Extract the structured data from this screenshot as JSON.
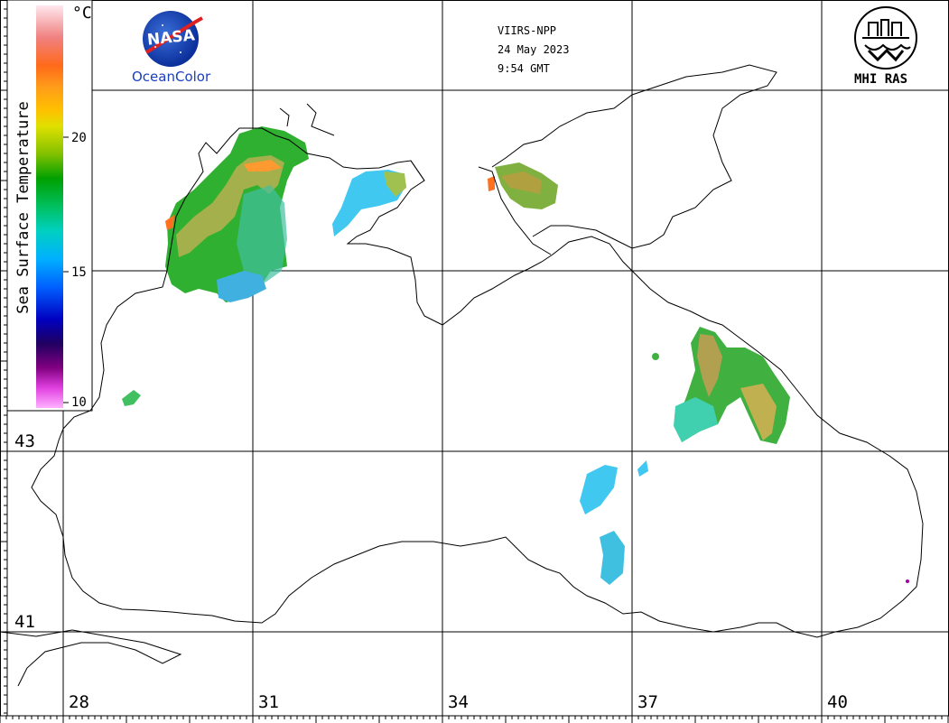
{
  "header": {
    "satellite": "VIIRS-NPP",
    "date": "24 May 2023",
    "time": "9:54 GMT"
  },
  "logos": {
    "nasa_text": "NASA",
    "oceancolor": "OceanColor",
    "mhi": "MHI RAS"
  },
  "legend": {
    "title": "Sea Surface Temperature",
    "unit": "°C",
    "ticks": [
      "20",
      "15",
      "10"
    ],
    "colors": [
      "#ffe8ee",
      "#f08080",
      "#ff6a1a",
      "#ff9a1a",
      "#ffc000",
      "#e0e000",
      "#80c000",
      "#00a000",
      "#00c060",
      "#00d0c0",
      "#00b0ff",
      "#0060ff",
      "#0000c0",
      "#200060",
      "#800080",
      "#e040e0",
      "#ffb0ff"
    ]
  },
  "grid": {
    "longitudes": [
      "28",
      "31",
      "34",
      "37",
      "40"
    ],
    "latitudes": [
      "43",
      "41"
    ]
  },
  "colors": {
    "land_outline": "#000000",
    "grid": "#000000"
  }
}
